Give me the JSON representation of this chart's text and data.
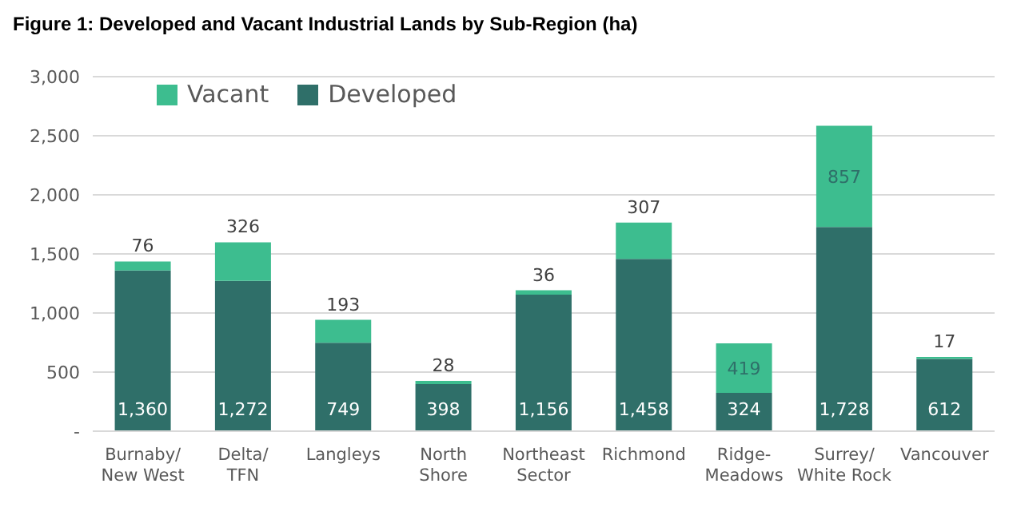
{
  "chart_data": {
    "type": "bar",
    "title": "Figure 1: Developed and Vacant Industrial Lands by Sub-Region (ha)",
    "categories": [
      "Burnaby/ New West",
      "Delta/ TFN",
      "Langleys",
      "North Shore",
      "Northeast Sector",
      "Richmond",
      "Ridge-Meadows",
      "Surrey/ White Rock",
      "Vancouver"
    ],
    "stacked": true,
    "series": [
      {
        "name": "Developed",
        "color": "#2f6f69",
        "values": [
          1360,
          1272,
          749,
          398,
          1156,
          1458,
          324,
          1728,
          612
        ],
        "value_labels": [
          "1,360",
          "1,272",
          "749",
          "398",
          "1,156",
          "1,458",
          "324",
          "1,728",
          "612"
        ]
      },
      {
        "name": "Vacant",
        "color": "#3dbd8f",
        "values": [
          76,
          326,
          193,
          28,
          36,
          307,
          419,
          857,
          17
        ],
        "value_labels": [
          "76",
          "326",
          "193",
          "28",
          "36",
          "307",
          "419",
          "857",
          "17"
        ]
      }
    ],
    "ylim": [
      0,
      3000
    ],
    "yticks": [
      {
        "value": 0,
        "label": "-"
      },
      {
        "value": 500,
        "label": "500"
      },
      {
        "value": 1000,
        "label": "1,000"
      },
      {
        "value": 1500,
        "label": "1,500"
      },
      {
        "value": 2000,
        "label": "2,000"
      },
      {
        "value": 2500,
        "label": "2,500"
      },
      {
        "value": 3000,
        "label": "3,000"
      }
    ],
    "grid": "y",
    "legend": "top left"
  }
}
